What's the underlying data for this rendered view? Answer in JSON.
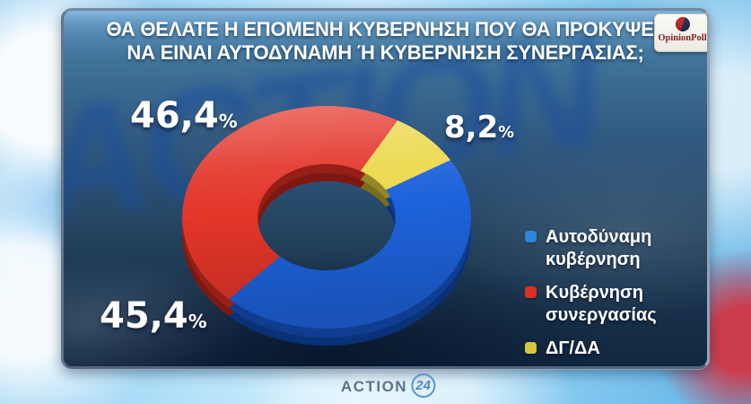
{
  "header": {
    "title_line1": "ΘΑ ΘΕΛΑΤΕ Η ΕΠΟΜΕΝΗ ΚΥΒΕΡΝΗΣΗ ΠΟΥ ΘΑ ΠΡΟΚΥΨΕΙ,",
    "title_line2": "ΝΑ ΕΙΝΑΙ ΑΥΤΟΔΥΝΑΜΗ Ή ΚΥΒΕΡΝΗΣΗ ΣΥΝΕΡΓΑΣΙΑΣ;",
    "badge_text": "OpinionPoll"
  },
  "chart_data": {
    "type": "pie",
    "donut": true,
    "title": "ΘΑ ΘΕΛΑΤΕ Η ΕΠΟΜΕΝΗ ΚΥΒΕΡΝΗΣΗ ΠΟΥ ΘΑ ΠΡΟΚΥΨΕΙ, ΝΑ ΕΙΝΑΙ ΑΥΤΟΔΥΝΑΜΗ Ή ΚΥΒΕΡΝΗΣΗ ΣΥΝΕΡΓΑΣΙΑΣ;",
    "legend_position": "right",
    "percent_sign": "%",
    "series": [
      {
        "name": "Αυτοδύναμη κυβέρνηση",
        "value": 45.4,
        "display": "45,4",
        "color": "#1e63dc",
        "legend_color": "#2e86dd",
        "legend_line1": "Αυτοδύναμη",
        "legend_line2": "κυβέρνηση"
      },
      {
        "name": "Κυβέρνηση συνεργασίας",
        "value": 46.4,
        "display": "46,4",
        "color": "#e4362a",
        "legend_color": "#e02d24",
        "legend_line1": "Κυβέρνηση",
        "legend_line2": "συνεργασίας"
      },
      {
        "name": "ΔΓ/ΔΑ",
        "value": 8.2,
        "display": "8,2",
        "color": "#ecd94d",
        "legend_color": "#d6c73e",
        "legend_line1": "ΔΓ/ΔΑ",
        "legend_line2": ""
      }
    ],
    "draw_order": [
      2,
      0,
      1
    ],
    "start_angle_deg": 28.5,
    "squash": 0.74
  },
  "watermark": {
    "text": "ACTION"
  },
  "footer": {
    "brand_action": "ACTION",
    "brand_number": "24"
  },
  "colors": {
    "panel_border": "#62748c",
    "title_text": "#ffffff",
    "sky_background": "#a6daf6",
    "badge_background": "#fbfaf6",
    "badge_text": "#7e1d26",
    "brand_text": "#5d7289",
    "brand_circle": "#5b93c8"
  }
}
